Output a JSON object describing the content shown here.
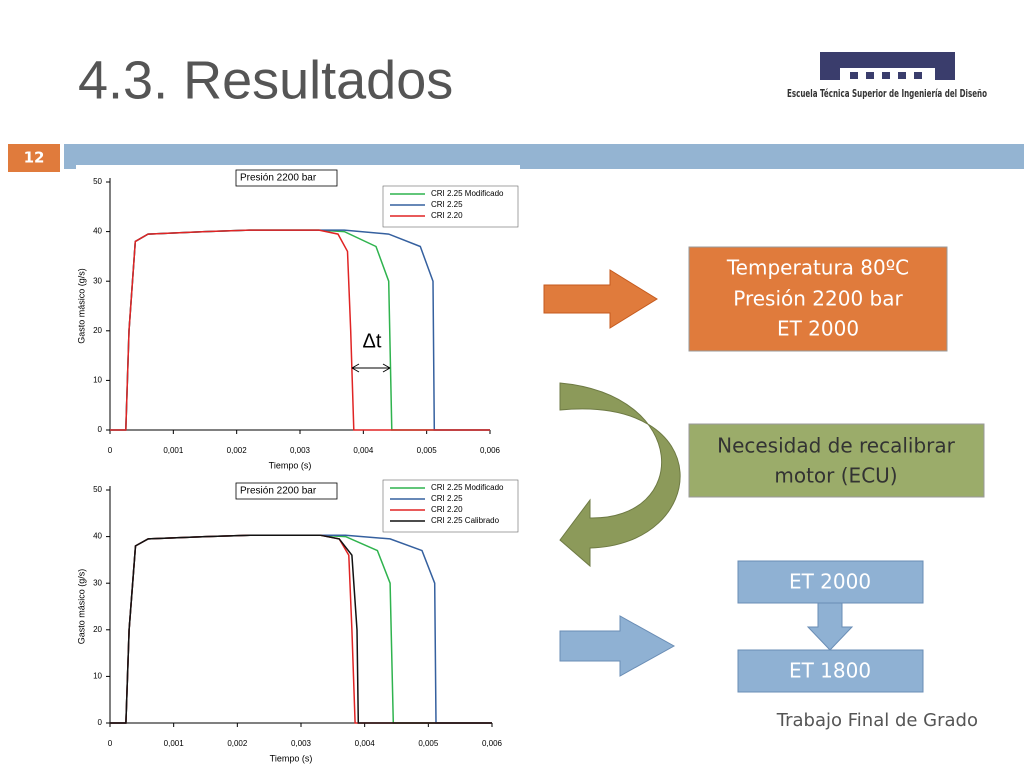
{
  "slide": {
    "title": "4.3. Resultados",
    "logo_text": "Escuela Técnica Superior de Ingeniería del Diseño",
    "page_number": "12",
    "footer": "Trabajo Final de Grado",
    "orange_box": [
      "Temperatura 80ºC",
      "Presión 2200 bar",
      "ET 2000"
    ],
    "green_box": [
      "Necesidad de recalibrar",
      "motor (ECU)"
    ],
    "blue_box_top": "ET 2000",
    "blue_box_bottom": "ET 1800"
  },
  "chart_data": [
    {
      "type": "line",
      "title": "Presión 2200 bar",
      "x_label": "Tiempo (s)",
      "y_label": "Gasto másico (g/s)",
      "annotation": "Δt",
      "xlim": [
        0,
        0.006
      ],
      "ylim": [
        0,
        50
      ],
      "xticks": [
        0,
        {
          "value": 0.001,
          "label": "0,001"
        },
        {
          "value": 0.002,
          "label": "0,002"
        },
        {
          "value": 0.003,
          "label": "0,003"
        },
        {
          "value": 0.004,
          "label": "0,004"
        },
        {
          "value": 0.005,
          "label": "0,005"
        },
        {
          "value": 0.006,
          "label": "0,006"
        }
      ],
      "yticks": [
        0,
        10,
        20,
        30,
        40,
        50
      ],
      "series": [
        {
          "name": "CRI 2.25 Modificado",
          "color": "#2fb34e",
          "x": [
            0,
            0.00025,
            0.0003,
            0.0004,
            0.0006,
            0.0015,
            0.0022,
            0.0033,
            0.0037,
            0.0042,
            0.0044,
            0.00445,
            0.006
          ],
          "values": [
            0,
            0,
            20,
            38,
            39.5,
            40,
            40.3,
            40.3,
            40,
            37,
            30,
            0,
            0
          ]
        },
        {
          "name": "CRI 2.25",
          "color": "#35609f",
          "x": [
            0,
            0.00025,
            0.0003,
            0.0004,
            0.0006,
            0.0015,
            0.0022,
            0.0037,
            0.0044,
            0.0049,
            0.0051,
            0.00512,
            0.006
          ],
          "values": [
            0,
            0,
            20,
            38,
            39.5,
            40,
            40.3,
            40.3,
            39.5,
            37,
            30,
            0,
            0
          ]
        },
        {
          "name": "CRI 2.20",
          "color": "#e02424",
          "x": [
            0,
            0.00025,
            0.0003,
            0.0004,
            0.0006,
            0.0015,
            0.0022,
            0.0033,
            0.0036,
            0.00375,
            0.0038,
            0.00385,
            0.006
          ],
          "values": [
            0,
            0,
            20,
            38,
            39.5,
            40,
            40.3,
            40.3,
            39.5,
            36,
            20,
            0,
            0
          ]
        }
      ]
    },
    {
      "type": "line",
      "title": "Presión 2200 bar",
      "x_label": "Tiempo (s)",
      "y_label": "Gasto másico (g/s)",
      "xlim": [
        0,
        0.006
      ],
      "ylim": [
        0,
        50
      ],
      "xticks": [
        0,
        {
          "value": 0.001,
          "label": "0,001"
        },
        {
          "value": 0.002,
          "label": "0,002"
        },
        {
          "value": 0.003,
          "label": "0,003"
        },
        {
          "value": 0.004,
          "label": "0,004"
        },
        {
          "value": 0.005,
          "label": "0,005"
        },
        {
          "value": 0.006,
          "label": "0,006"
        }
      ],
      "yticks": [
        0,
        10,
        20,
        30,
        40,
        50
      ],
      "series": [
        {
          "name": "CRI 2.25 Modificado",
          "color": "#2fb34e",
          "x": [
            0,
            0.00025,
            0.0003,
            0.0004,
            0.0006,
            0.0015,
            0.0022,
            0.0033,
            0.0037,
            0.0042,
            0.0044,
            0.00445,
            0.006
          ],
          "values": [
            0,
            0,
            20,
            38,
            39.5,
            40,
            40.3,
            40.3,
            40,
            37,
            30,
            0,
            0
          ]
        },
        {
          "name": "CRI 2.25",
          "color": "#35609f",
          "x": [
            0,
            0.00025,
            0.0003,
            0.0004,
            0.0006,
            0.0015,
            0.0022,
            0.0037,
            0.0044,
            0.0049,
            0.0051,
            0.00512,
            0.006
          ],
          "values": [
            0,
            0,
            20,
            38,
            39.5,
            40,
            40.3,
            40.3,
            39.5,
            37,
            30,
            0,
            0
          ]
        },
        {
          "name": "CRI 2.20",
          "color": "#e02424",
          "x": [
            0,
            0.00025,
            0.0003,
            0.0004,
            0.0006,
            0.0015,
            0.0022,
            0.0033,
            0.0036,
            0.00375,
            0.0038,
            0.00385,
            0.006
          ],
          "values": [
            0,
            0,
            20,
            38,
            39.5,
            40,
            40.3,
            40.3,
            39.5,
            36,
            20,
            0,
            0
          ]
        },
        {
          "name": "CRI 2.25 Calibrado",
          "color": "#111111",
          "x": [
            0,
            0.00025,
            0.0003,
            0.0004,
            0.0006,
            0.0015,
            0.0022,
            0.0033,
            0.0036,
            0.0038,
            0.00388,
            0.0039,
            0.006
          ],
          "values": [
            0,
            0,
            20,
            38,
            39.5,
            40,
            40.3,
            40.3,
            39.5,
            36,
            20,
            0,
            0
          ]
        }
      ]
    }
  ]
}
